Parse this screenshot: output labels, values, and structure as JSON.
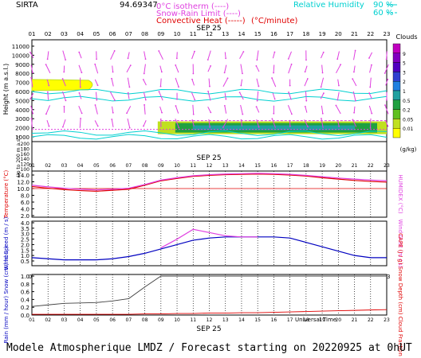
{
  "header": {
    "station": "SIRTA",
    "coords": "94.69347",
    "legend_left": [
      {
        "label": "0°C isotherm",
        "line": "(----)",
        "color": "#e040e0"
      },
      {
        "label": "Snow-Rain Limit",
        "line": "(----)",
        "color": "#e040e0"
      },
      {
        "label": "Convective Heat",
        "line": "(-----)",
        "color": "#e00000"
      }
    ],
    "convective_unit": "(°C/minute)",
    "humidity_label": "Relative Humidity",
    "humidity_lines": [
      "90 %",
      "60 %"
    ],
    "humidity_color": "#00d0d0"
  },
  "footer": {
    "text": "Modele Atmospherique LMDZ / Forecast starting on 20220925 at 0hUT"
  },
  "chart_data": [
    {
      "type": "heatmap",
      "name": "clouds-wind-profile",
      "hours": [
        "01",
        "02",
        "03",
        "04",
        "05",
        "06",
        "07",
        "08",
        "09",
        "10",
        "11",
        "12",
        "13",
        "14",
        "15",
        "16",
        "17",
        "18",
        "19",
        "20",
        "21",
        "22",
        "23"
      ],
      "date_label": "SEP 25",
      "ylabel": "Height (m a.s.l.)",
      "ylabel_lower": "Up to 200 m a.s.l.",
      "yticks_upper": [
        "11000",
        "10000",
        "9000",
        "8000",
        "7000",
        "6000",
        "5000",
        "4000",
        "3000",
        "2000",
        "1000"
      ],
      "yticks_lower": [
        "200",
        "180",
        "160",
        "140",
        "120",
        "100"
      ],
      "colorbar": {
        "title": "Clouds",
        "unit": "(g/kg)",
        "ticks": [
          "9",
          "5",
          "3",
          "2",
          "1",
          "0.5",
          "0.2",
          "0.05",
          "0.01"
        ],
        "colors": [
          "#c000c0",
          "#8000c0",
          "#5000c0",
          "#3040d0",
          "#2080e0",
          "#20a0a0",
          "#20a040",
          "#60c020",
          "#c0e020",
          "#ffff00"
        ]
      },
      "cloud_layers": [
        {
          "height_m": 6800,
          "from_hour": 1,
          "to_hour": 5,
          "level": "low"
        },
        {
          "height_m": 2000,
          "from_hour": 9,
          "to_hour": 23,
          "level": "high"
        }
      ]
    },
    {
      "type": "line",
      "name": "temperature",
      "ylabel": "Temperature (°C)",
      "ylabel_right": "HUMIDEX (°C)",
      "yticks": [
        "14.0",
        "12.0",
        "10.0",
        "8.0",
        "6.0",
        "4.0",
        "2.0"
      ],
      "ylim": [
        2,
        14
      ],
      "x": [
        1,
        2,
        3,
        4,
        5,
        6,
        7,
        8,
        9,
        10,
        11,
        12,
        13,
        14,
        15,
        16,
        17,
        18,
        19,
        20,
        21,
        22,
        23
      ],
      "series": [
        {
          "name": "Temperature",
          "color": "#e00000",
          "values": [
            10.6,
            10.1,
            9.7,
            9.4,
            9.2,
            9.5,
            9.8,
            11.0,
            12.3,
            13.0,
            13.6,
            13.9,
            14.1,
            14.2,
            14.3,
            14.2,
            14.0,
            13.7,
            13.2,
            12.8,
            12.4,
            12.1,
            11.9
          ]
        },
        {
          "name": "HUMIDEX",
          "color": "#e040e0",
          "values": [
            11.0,
            10.5,
            10.1,
            9.8,
            9.6,
            9.8,
            10.1,
            11.2,
            12.5,
            13.2,
            13.8,
            14.1,
            14.3,
            14.4,
            14.5,
            14.4,
            14.2,
            13.9,
            13.5,
            13.1,
            12.8,
            12.5,
            12.3
          ]
        }
      ]
    },
    {
      "type": "line",
      "name": "wind",
      "ylabel": "Wind Speed (m / s)",
      "ylabel_right": "Wind Gust (m / s)",
      "yticks": [
        "4.0",
        "3.5",
        "3.0",
        "2.5",
        "2.0",
        "1.5",
        "1.0",
        "0.5"
      ],
      "ylim": [
        0.5,
        4
      ],
      "x": [
        1,
        2,
        3,
        4,
        5,
        6,
        7,
        8,
        9,
        10,
        11,
        12,
        13,
        14,
        15,
        16,
        17,
        18,
        19,
        20,
        21,
        22,
        23
      ],
      "series": [
        {
          "name": "Wind Speed",
          "color": "#0000c0",
          "values": [
            0.8,
            0.7,
            0.6,
            0.6,
            0.6,
            0.7,
            0.9,
            1.2,
            1.6,
            2.0,
            2.4,
            2.6,
            2.7,
            2.7,
            2.7,
            2.7,
            2.6,
            2.2,
            1.8,
            1.4,
            1.0,
            0.8,
            0.8
          ]
        },
        {
          "name": "Wind Gust",
          "color": "#e040e0",
          "values": [
            null,
            null,
            null,
            null,
            null,
            null,
            null,
            null,
            1.7,
            2.5,
            3.4,
            3.1,
            2.8,
            2.7,
            2.7,
            null,
            null,
            null,
            null,
            null,
            null,
            null,
            null
          ]
        }
      ]
    },
    {
      "type": "line",
      "name": "precipitation",
      "ylabel": "Rain (mm / hour) Snow (cm / hour)",
      "ylabel_right": "CAPE (J / g) Snow Depth (cm) Cloud Fraction",
      "yticks": [
        "1.0",
        "0.8",
        "0.6",
        "0.4",
        "0.2",
        "0.0"
      ],
      "ylim": [
        0,
        1
      ],
      "date_label": "SEP 25",
      "time_label": "Universal Time",
      "x": [
        1,
        2,
        3,
        4,
        5,
        6,
        7,
        8,
        9,
        10,
        11,
        12,
        13,
        14,
        15,
        16,
        17,
        18,
        19,
        20,
        21,
        22,
        23
      ],
      "series": [
        {
          "name": "Cloud Fraction",
          "color": "#404040",
          "values": [
            0.22,
            0.26,
            0.3,
            0.31,
            0.32,
            0.36,
            0.42,
            0.72,
            1.0,
            1.0,
            1.0,
            1.0,
            1.0,
            1.0,
            1.0,
            1.0,
            1.0,
            1.0,
            1.0,
            1.0,
            1.0,
            1.0,
            1.0
          ]
        },
        {
          "name": "CAPE",
          "color": "#e00000",
          "values": [
            0.02,
            0.02,
            0.02,
            0.02,
            0.02,
            0.02,
            0.02,
            0.03,
            0.03,
            0.04,
            0.04,
            0.05,
            0.05,
            0.06,
            0.06,
            0.07,
            0.08,
            0.09,
            0.1,
            0.11,
            0.12,
            0.13,
            0.14
          ]
        }
      ]
    }
  ]
}
